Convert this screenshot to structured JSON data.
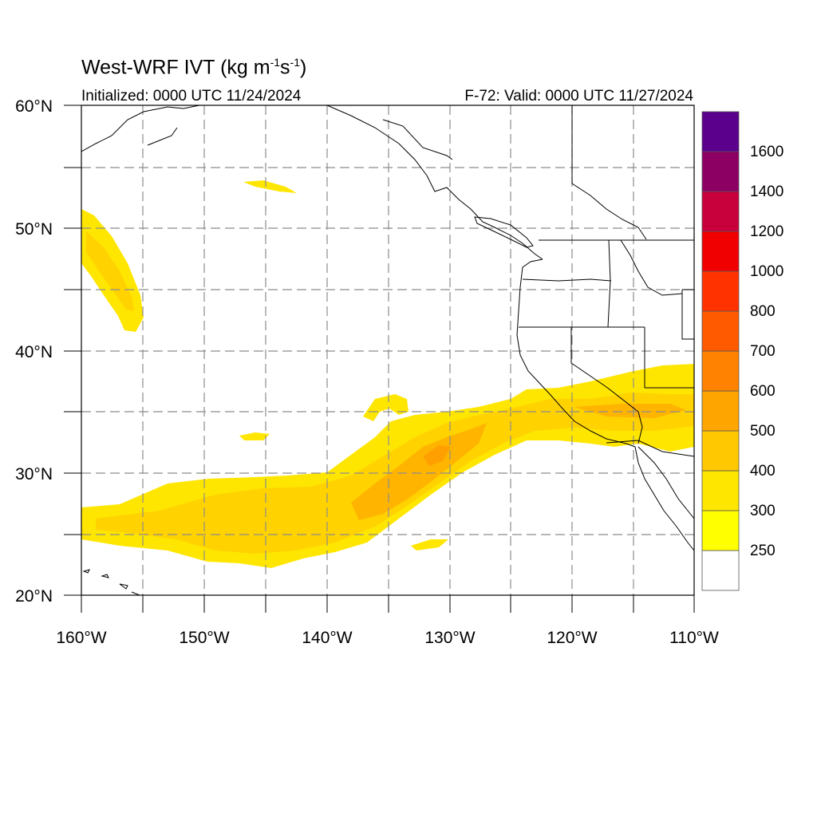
{
  "title": {
    "main": "West-WRF IVT (kg m",
    "sup1": "-1",
    "mid": "s",
    "sup2": "-1",
    "end": ")"
  },
  "subtitle_left": "Initialized: 0000 UTC 11/24/2024",
  "subtitle_right": "F-72: Valid: 0000 UTC 11/27/2024",
  "map": {
    "lon_range": [
      -160,
      -110
    ],
    "lat_range": [
      20,
      60
    ],
    "lon_ticks": [
      {
        "value": -160,
        "label": "160°W"
      },
      {
        "value": -150,
        "label": "150°W"
      },
      {
        "value": -140,
        "label": "140°W"
      },
      {
        "value": -130,
        "label": "130°W"
      },
      {
        "value": -120,
        "label": "120°W"
      },
      {
        "value": -110,
        "label": "110°W"
      }
    ],
    "lat_ticks": [
      {
        "value": 60,
        "label": "60°N"
      },
      {
        "value": 50,
        "label": "50°N"
      },
      {
        "value": 40,
        "label": "40°N"
      },
      {
        "value": 30,
        "label": "30°N"
      },
      {
        "value": 20,
        "label": "20°N"
      }
    ],
    "grid": true
  },
  "colorbar": {
    "levels": [
      {
        "label": "",
        "color": "#ffffff"
      },
      {
        "label": "250",
        "color": "#ffff00"
      },
      {
        "label": "300",
        "color": "#ffe600"
      },
      {
        "label": "400",
        "color": "#ffc800"
      },
      {
        "label": "500",
        "color": "#ffa500"
      },
      {
        "label": "600",
        "color": "#ff8200"
      },
      {
        "label": "700",
        "color": "#ff5a00"
      },
      {
        "label": "800",
        "color": "#ff3200"
      },
      {
        "label": "1000",
        "color": "#f00000"
      },
      {
        "label": "1200",
        "color": "#c8003c"
      },
      {
        "label": "1400",
        "color": "#8c0064"
      },
      {
        "label": "1600",
        "color": "#5a008c"
      }
    ]
  },
  "colors": {
    "ivt_250": "#ffff00",
    "ivt_300": "#ffe600",
    "ivt_400": "#ffc800",
    "ivt_500": "#ffa500",
    "grid": "#999999",
    "coast": "#000000"
  }
}
